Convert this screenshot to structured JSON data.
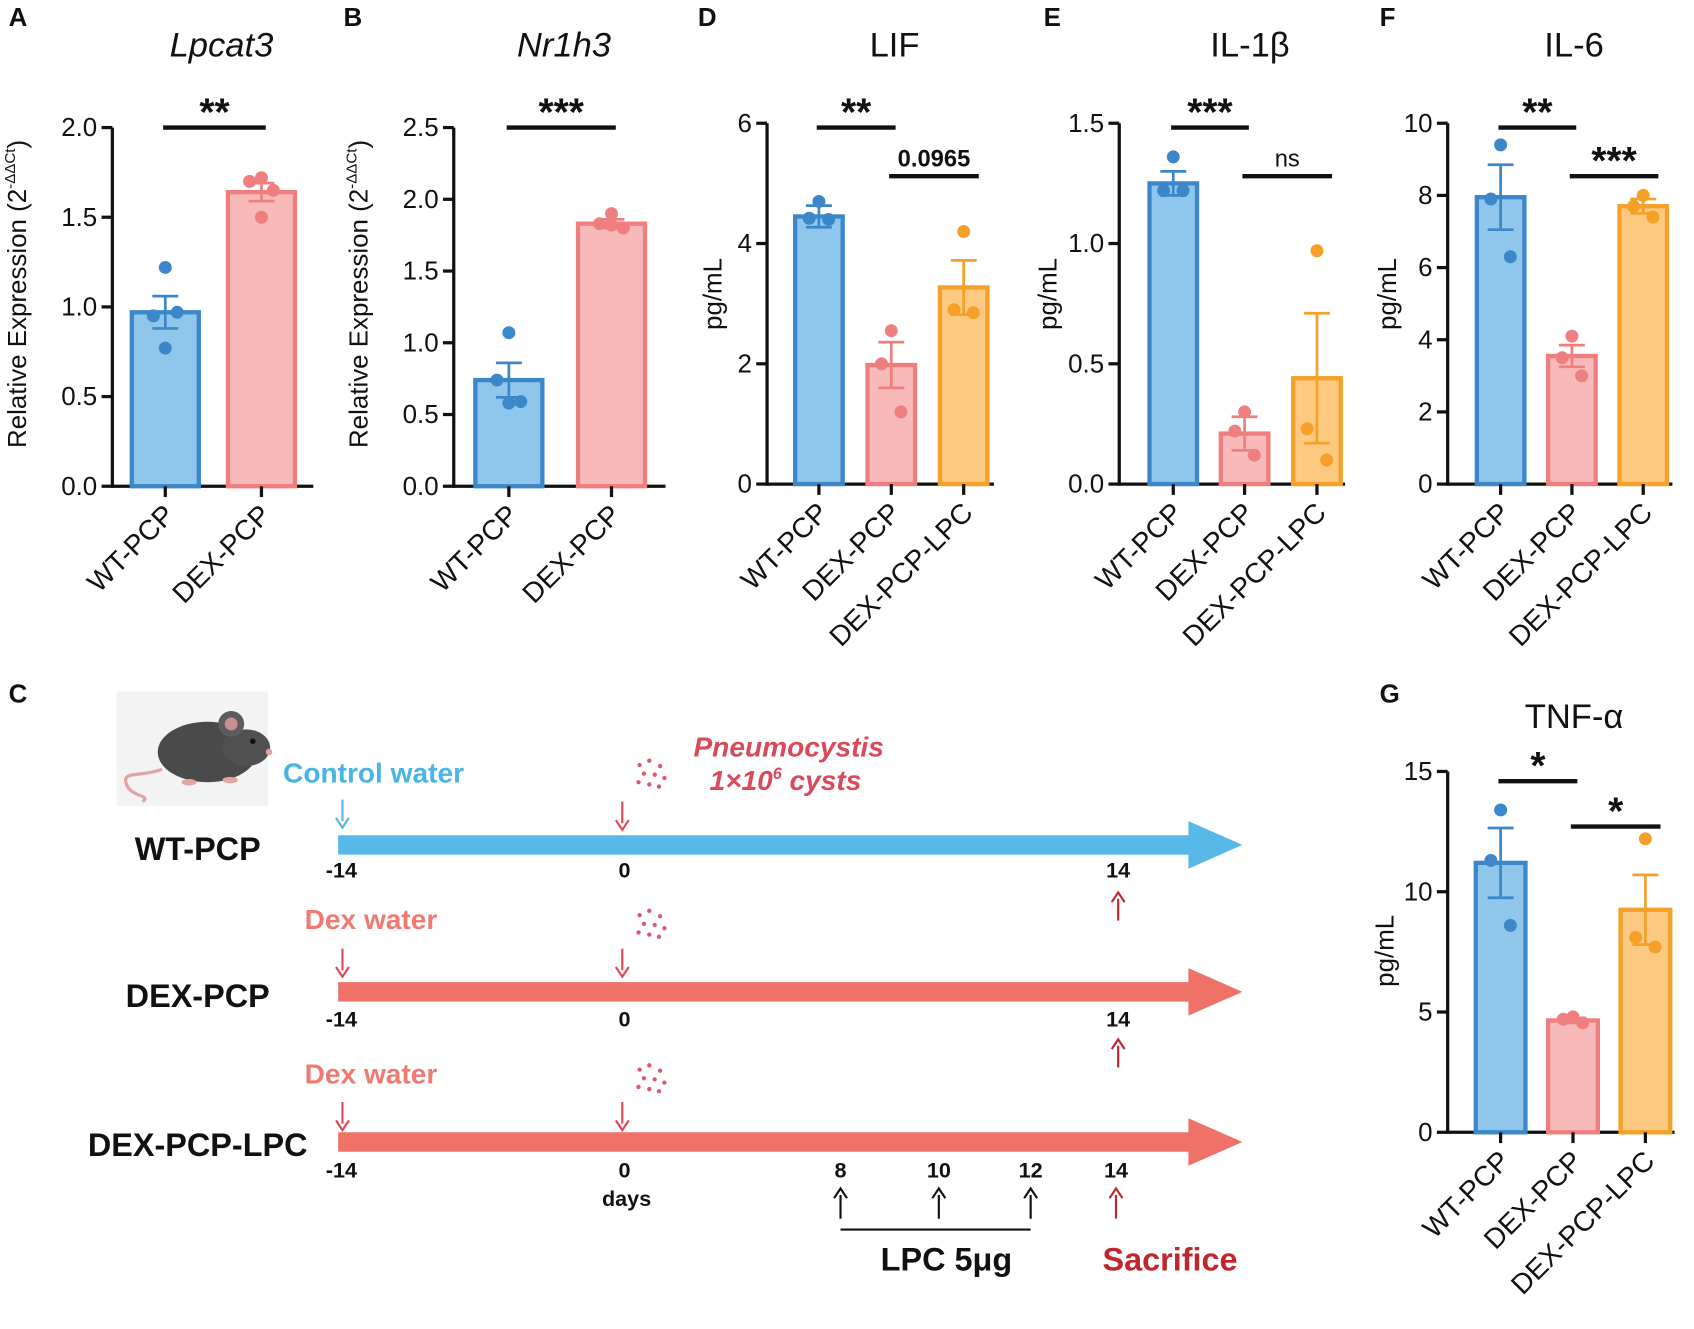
{
  "colors": {
    "blue_fill": "#8ec6ec",
    "blue_stroke": "#3b87c9",
    "pink_fill": "#f8b9b9",
    "pink_stroke": "#ef7f7f",
    "orange_fill": "#fdc87f",
    "orange_stroke": "#f5a028",
    "timeline_blue": "#58b8e8",
    "timeline_red": "#ef7269",
    "sacrifice_red": "#c0272d"
  },
  "chart_data": [
    {
      "panel": "A",
      "type": "bar",
      "title": "Lpcat3",
      "title_italic": true,
      "ylabel": "Relative Expression (2",
      "ylabel_sup": "-ΔΔCt",
      "ylabel_end": ")",
      "ylim": [
        0,
        2
      ],
      "yticks": [
        0,
        0.5,
        1,
        1.5,
        2
      ],
      "ytick_labels": [
        "0.0",
        "0.5",
        "1.0",
        "1.5",
        "2.0"
      ],
      "categories": [
        "WT-PCP",
        "DEX-PCP"
      ],
      "values": [
        0.97,
        1.64
      ],
      "sem": [
        0.09,
        0.05
      ],
      "points": [
        [
          1.22,
          0.95,
          0.97,
          0.77
        ],
        [
          1.72,
          1.7,
          1.65,
          1.5
        ]
      ],
      "series_colors": [
        "blue",
        "pink"
      ],
      "significance": [
        {
          "from": 0,
          "to": 1,
          "label": "**",
          "row": 0
        }
      ]
    },
    {
      "panel": "B",
      "type": "bar",
      "title": "Nr1h3",
      "title_italic": true,
      "ylabel": "Relative Expression (2",
      "ylabel_sup": "-ΔΔCt",
      "ylabel_end": ")",
      "ylim": [
        0,
        2.5
      ],
      "yticks": [
        0,
        0.5,
        1,
        1.5,
        2,
        2.5
      ],
      "ytick_labels": [
        "0.0",
        "0.5",
        "1.0",
        "1.5",
        "2.0",
        "2.5"
      ],
      "categories": [
        "WT-PCP",
        "DEX-PCP"
      ],
      "values": [
        0.74,
        1.83
      ],
      "sem": [
        0.12,
        0.03
      ],
      "points": [
        [
          1.07,
          0.74,
          0.59,
          0.58
        ],
        [
          1.9,
          1.83,
          1.8,
          1.82
        ]
      ],
      "series_colors": [
        "blue",
        "pink"
      ],
      "significance": [
        {
          "from": 0,
          "to": 1,
          "label": "***",
          "row": 0
        }
      ]
    },
    {
      "panel": "D",
      "type": "bar",
      "title": "LIF",
      "title_italic": false,
      "ylabel": "pg/mL",
      "ylim": [
        0,
        6
      ],
      "yticks": [
        0,
        2,
        4,
        6
      ],
      "ytick_labels": [
        "0",
        "2",
        "4",
        "6"
      ],
      "categories": [
        "WT-PCP",
        "DEX-PCP",
        "DEX-PCP-LPC"
      ],
      "values": [
        4.45,
        1.98,
        3.27
      ],
      "sem": [
        0.18,
        0.38,
        0.45
      ],
      "points": [
        [
          4.7,
          4.42,
          4.4
        ],
        [
          2.55,
          2.0,
          1.2
        ],
        [
          4.2,
          2.9,
          2.85
        ]
      ],
      "series_colors": [
        "blue",
        "pink",
        "orange"
      ],
      "significance": [
        {
          "from": 0,
          "to": 1,
          "label": "**",
          "row": 0
        },
        {
          "from": 1,
          "to": 2,
          "label": "0.0965",
          "row": 1
        }
      ]
    },
    {
      "panel": "E",
      "type": "bar",
      "title": "IL-1β",
      "title_italic": false,
      "ylabel": "pg/mL",
      "ylim": [
        0,
        1.5
      ],
      "yticks": [
        0,
        0.5,
        1,
        1.5
      ],
      "ytick_labels": [
        "0.0",
        "0.5",
        "1.0",
        "1.5"
      ],
      "categories": [
        "WT-PCP",
        "DEX-PCP",
        "DEX-PCP-LPC"
      ],
      "values": [
        1.25,
        0.21,
        0.44
      ],
      "sem": [
        0.05,
        0.07,
        0.27
      ],
      "points": [
        [
          1.36,
          1.22,
          1.22
        ],
        [
          0.3,
          0.22,
          0.12
        ],
        [
          0.97,
          0.23,
          0.1
        ]
      ],
      "series_colors": [
        "blue",
        "pink",
        "orange"
      ],
      "significance": [
        {
          "from": 0,
          "to": 1,
          "label": "***",
          "row": 0
        },
        {
          "from": 1,
          "to": 2,
          "label": "ns",
          "row": 1
        }
      ]
    },
    {
      "panel": "F",
      "type": "bar",
      "title": "IL-6",
      "title_italic": false,
      "ylabel": "pg/mL",
      "ylim": [
        0,
        10
      ],
      "yticks": [
        0,
        2,
        4,
        6,
        8,
        10
      ],
      "ytick_labels": [
        "0",
        "2",
        "4",
        "6",
        "8",
        "10"
      ],
      "categories": [
        "WT-PCP",
        "DEX-PCP",
        "DEX-PCP-LPC"
      ],
      "values": [
        7.95,
        3.55,
        7.7
      ],
      "sem": [
        0.9,
        0.3,
        0.2
      ],
      "points": [
        [
          9.4,
          7.9,
          6.3
        ],
        [
          4.1,
          3.5,
          3.0
        ],
        [
          8.0,
          7.7,
          7.4
        ]
      ],
      "series_colors": [
        "blue",
        "pink",
        "orange"
      ],
      "significance": [
        {
          "from": 0,
          "to": 1,
          "label": "**",
          "row": 0
        },
        {
          "from": 1,
          "to": 2,
          "label": "***",
          "row": 1
        }
      ]
    },
    {
      "panel": "G",
      "type": "bar",
      "title": "TNF-α",
      "title_italic": false,
      "ylabel": "pg/mL",
      "ylim": [
        0,
        15
      ],
      "yticks": [
        0,
        5,
        10,
        15
      ],
      "ytick_labels": [
        "0",
        "5",
        "10",
        "15"
      ],
      "categories": [
        "WT-PCP",
        "DEX-PCP",
        "DEX-PCP-LPC"
      ],
      "values": [
        11.2,
        4.65,
        9.25
      ],
      "sem": [
        1.45,
        0.1,
        1.45
      ],
      "points": [
        [
          13.4,
          11.3,
          8.6
        ],
        [
          4.8,
          4.7,
          4.55
        ],
        [
          12.2,
          8.1,
          7.7
        ]
      ],
      "series_colors": [
        "blue",
        "pink",
        "orange"
      ],
      "significance": [
        {
          "from": 0,
          "to": 1,
          "label": "*",
          "row": 0
        },
        {
          "from": 1,
          "to": 2,
          "label": "*",
          "row": 1
        }
      ]
    }
  ],
  "timeline": {
    "panel": "C",
    "rows": [
      {
        "label": "WT-PCP",
        "water": "Control water",
        "ticks": [
          "-14",
          "0",
          "14"
        ]
      },
      {
        "label": "DEX-PCP",
        "water": "Dex water",
        "ticks": [
          "-14",
          "0",
          "14"
        ]
      },
      {
        "label": "DEX-PCP-LPC",
        "water": "Dex water",
        "ticks": [
          "-14",
          "0",
          "14"
        ]
      }
    ],
    "infection": {
      "organism": "Pneumocystis",
      "dose_prefix": "1×10",
      "dose_exp": "6",
      "dose_suffix": " cysts"
    },
    "days_label": "days",
    "lpc_days": [
      "8",
      "10",
      "12"
    ],
    "lpc_label": "LPC 5μg",
    "sacrifice_label": "Sacrifice"
  }
}
